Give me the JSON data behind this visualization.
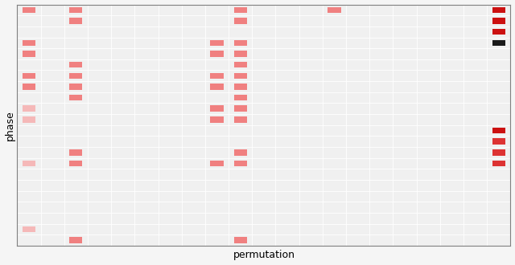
{
  "title": "",
  "xlabel": "permutation",
  "ylabel": "phase",
  "n_rows": 22,
  "n_cols": 21,
  "cell_size": 0.55,
  "cells": [
    {
      "row": 0,
      "col": 0,
      "value": 0.25
    },
    {
      "row": 0,
      "col": 2,
      "value": 0.3
    },
    {
      "row": 0,
      "col": 9,
      "value": 0.3
    },
    {
      "row": 0,
      "col": 13,
      "value": 0.3
    },
    {
      "row": 0,
      "col": 20,
      "value": 1.0
    },
    {
      "row": 1,
      "col": 2,
      "value": 0.3
    },
    {
      "row": 1,
      "col": 9,
      "value": 0.3
    },
    {
      "row": 1,
      "col": 20,
      "value": 0.9
    },
    {
      "row": 2,
      "col": 20,
      "value": 0.9
    },
    {
      "row": 3,
      "col": 0,
      "value": 0.25
    },
    {
      "row": 3,
      "col": 8,
      "value": 0.3
    },
    {
      "row": 3,
      "col": 9,
      "value": 0.3
    },
    {
      "row": 3,
      "col": 20,
      "value": -1.0
    },
    {
      "row": 4,
      "col": 0,
      "value": 0.25
    },
    {
      "row": 4,
      "col": 8,
      "value": 0.3
    },
    {
      "row": 4,
      "col": 9,
      "value": 0.3
    },
    {
      "row": 5,
      "col": 2,
      "value": 0.3
    },
    {
      "row": 5,
      "col": 9,
      "value": 0.3
    },
    {
      "row": 6,
      "col": 0,
      "value": 0.25
    },
    {
      "row": 6,
      "col": 2,
      "value": 0.3
    },
    {
      "row": 6,
      "col": 8,
      "value": 0.3
    },
    {
      "row": 6,
      "col": 9,
      "value": 0.3
    },
    {
      "row": 7,
      "col": 0,
      "value": 0.25
    },
    {
      "row": 7,
      "col": 2,
      "value": 0.3
    },
    {
      "row": 7,
      "col": 8,
      "value": 0.3
    },
    {
      "row": 7,
      "col": 9,
      "value": 0.3
    },
    {
      "row": 8,
      "col": 2,
      "value": 0.3
    },
    {
      "row": 8,
      "col": 9,
      "value": 0.3
    },
    {
      "row": 9,
      "col": 0,
      "value": 0.22
    },
    {
      "row": 9,
      "col": 8,
      "value": 0.3
    },
    {
      "row": 9,
      "col": 9,
      "value": 0.3
    },
    {
      "row": 10,
      "col": 0,
      "value": 0.22
    },
    {
      "row": 10,
      "col": 8,
      "value": 0.3
    },
    {
      "row": 10,
      "col": 9,
      "value": 0.3
    },
    {
      "row": 11,
      "col": 20,
      "value": 0.9
    },
    {
      "row": 12,
      "col": 20,
      "value": 0.85
    },
    {
      "row": 13,
      "col": 2,
      "value": 0.25
    },
    {
      "row": 13,
      "col": 9,
      "value": 0.3
    },
    {
      "row": 13,
      "col": 20,
      "value": 0.85
    },
    {
      "row": 14,
      "col": 0,
      "value": 0.22
    },
    {
      "row": 14,
      "col": 2,
      "value": 0.25
    },
    {
      "row": 14,
      "col": 8,
      "value": 0.3
    },
    {
      "row": 14,
      "col": 9,
      "value": 0.3
    },
    {
      "row": 14,
      "col": 20,
      "value": 0.85
    },
    {
      "row": 20,
      "col": 0,
      "value": 0.22
    },
    {
      "row": 21,
      "col": 2,
      "value": 0.25
    },
    {
      "row": 21,
      "col": 9,
      "value": 0.25
    }
  ],
  "light_pink": "#f5b8b8",
  "medium_pink": "#f08080",
  "dark_red": "#cc1111",
  "black": "#1a1a1a",
  "bg_color": "#f0f0f0",
  "fig_bg": "#f5f5f5",
  "grid_color": "white",
  "spine_color": "gray"
}
